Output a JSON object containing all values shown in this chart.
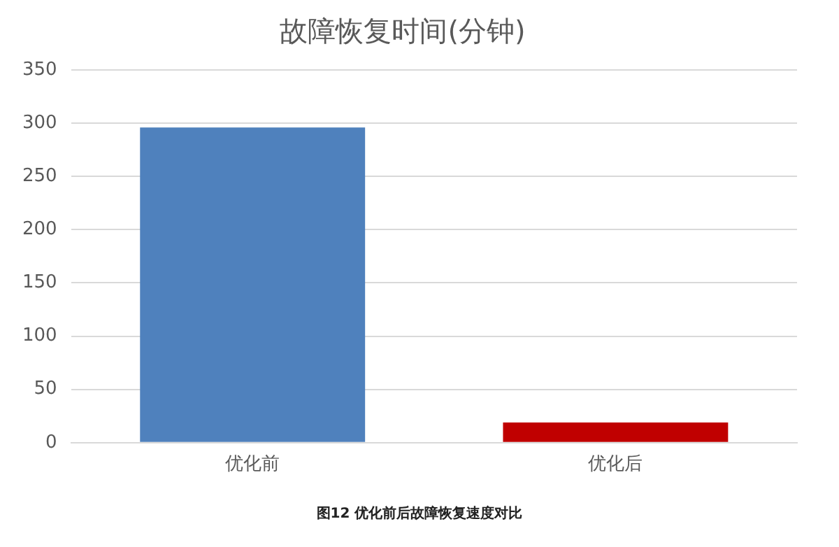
{
  "chart_data": {
    "type": "bar",
    "title": "故障恢复时间(分钟)",
    "categories": [
      "优化前",
      "优化后"
    ],
    "values": [
      296,
      19
    ],
    "colors": [
      "#4f81bd",
      "#c00000"
    ],
    "ylim": [
      0,
      350
    ],
    "yticks": [
      0,
      50,
      100,
      150,
      200,
      250,
      300,
      350
    ],
    "grid": "y",
    "legend": false,
    "annotations": [
      "图12 优化前后故障恢复速度对比"
    ]
  }
}
